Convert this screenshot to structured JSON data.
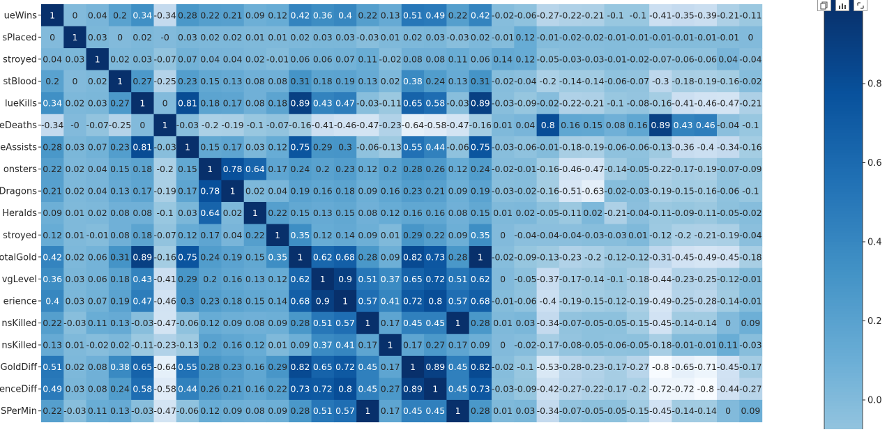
{
  "chart_data": {
    "type": "heatmap",
    "rows": [
      "blueWins",
      "blueWardsPlaced",
      "blueWardsDestroyed",
      "blueFirstBlood",
      "blueKills",
      "blueDeaths",
      "blueAssists",
      "blueEliteMonsters",
      "blueDragons",
      "blueHeralds",
      "blueTowersDestroyed",
      "blueTotalGold",
      "blueAvgLevel",
      "blueTotalExperience",
      "blueTotalMinionsKilled",
      "blueTotalJungleMinionsKilled",
      "blueGoldDiff",
      "blueExperienceDiff",
      "blueCSPerMin"
    ],
    "row_labels_visible": [
      "ueWins",
      "sPlaced",
      "stroyed",
      "stBlood",
      "lueKills",
      "eDeaths",
      "eAssists",
      "onsters",
      "Dragons",
      "Heralds",
      "stroyed",
      "otalGold",
      "vgLevel",
      "erience",
      "nsKilled",
      "nsKilled",
      "GoldDiff",
      "enceDiff",
      "SPerMin"
    ],
    "values": [
      [
        1,
        0,
        0.04,
        0.2,
        0.34,
        -0.34,
        0.28,
        0.22,
        0.21,
        0.09,
        0.12,
        0.42,
        0.36,
        0.4,
        0.22,
        0.13,
        0.51,
        0.49,
        0.22,
        0.42,
        -0.02,
        -0.06,
        -0.27,
        -0.22,
        -0.21,
        -0.1,
        -0.1,
        -0.41,
        -0.35,
        -0.39,
        -0.21,
        -0.11
      ],
      [
        0,
        1,
        0.03,
        0,
        0.02,
        0,
        0.03,
        0.02,
        0.02,
        0.01,
        0.01,
        0.02,
        0.03,
        0.03,
        -0.03,
        0.01,
        0.02,
        0.03,
        -0.03,
        0.02,
        -0.01,
        0.12,
        -0.01,
        -0.02,
        -0.02,
        -0.01,
        -0.01,
        -0.01,
        -0.01,
        -0.01,
        -0.01,
        0
      ],
      [
        0.04,
        0.03,
        1,
        0.02,
        0.03,
        -0.07,
        0.07,
        0.04,
        0.04,
        0.02,
        -0.01,
        0.06,
        0.06,
        0.07,
        0.11,
        -0.02,
        0.08,
        0.08,
        0.11,
        0.06,
        0.14,
        0.12,
        -0.05,
        -0.03,
        -0.03,
        -0.01,
        -0.02,
        -0.07,
        -0.06,
        -0.06,
        0.04,
        -0.04
      ],
      [
        0.2,
        0,
        0.02,
        1,
        0.27,
        -0.25,
        0.23,
        0.15,
        0.13,
        0.08,
        0.08,
        0.31,
        0.18,
        0.19,
        0.13,
        0.02,
        0.38,
        0.24,
        0.13,
        0.31,
        -0.02,
        -0.04,
        -0.2,
        -0.14,
        -0.14,
        -0.06,
        -0.07,
        -0.3,
        -0.18,
        -0.19,
        -0.16,
        -0.02
      ],
      [
        0.34,
        0.02,
        0.03,
        0.27,
        1,
        0,
        0.81,
        0.18,
        0.17,
        0.08,
        0.18,
        0.89,
        0.43,
        0.47,
        -0.03,
        -0.11,
        0.65,
        0.58,
        -0.03,
        0.89,
        -0.03,
        -0.09,
        -0.02,
        -0.22,
        -0.21,
        -0.1,
        -0.08,
        -0.16,
        -0.41,
        -0.46,
        -0.47,
        -0.21
      ],
      [
        -0.34,
        0,
        -0.07,
        -0.25,
        0,
        1,
        -0.03,
        -0.2,
        -0.19,
        -0.1,
        -0.07,
        -0.16,
        -0.41,
        -0.46,
        -0.47,
        -0.23,
        -0.64,
        -0.58,
        -0.47,
        -0.16,
        0.01,
        0.04,
        0.8,
        0.16,
        0.15,
        0.08,
        0.16,
        0.89,
        0.43,
        0.46,
        -0.04,
        -0.1
      ],
      [
        0.28,
        0.03,
        0.07,
        0.23,
        0.81,
        -0.03,
        1,
        0.15,
        0.17,
        0.03,
        0.12,
        0.75,
        0.29,
        0.3,
        -0.06,
        -0.13,
        0.55,
        0.44,
        -0.06,
        0.75,
        -0.03,
        -0.06,
        -0.01,
        -0.18,
        -0.19,
        -0.06,
        -0.06,
        -0.13,
        -0.36,
        -0.4,
        -0.34,
        -0.16
      ],
      [
        0.22,
        0.02,
        0.04,
        0.15,
        0.18,
        -0.2,
        0.15,
        1,
        0.78,
        0.64,
        0.17,
        0.24,
        0.2,
        0.23,
        0.12,
        0.2,
        0.28,
        0.26,
        0.12,
        0.24,
        -0.02,
        -0.01,
        -0.16,
        -0.46,
        -0.47,
        -0.14,
        -0.05,
        -0.22,
        -0.17,
        -0.19,
        -0.07,
        -0.09
      ],
      [
        0.21,
        0.02,
        0.04,
        0.13,
        0.17,
        -0.19,
        0.17,
        0.78,
        1,
        0.02,
        0.04,
        0.19,
        0.16,
        0.18,
        0.09,
        0.16,
        0.23,
        0.21,
        0.09,
        0.19,
        -0.03,
        -0.02,
        -0.16,
        -0.51,
        -0.63,
        -0.02,
        -0.03,
        -0.19,
        -0.15,
        -0.16,
        -0.06,
        -0.1
      ],
      [
        0.09,
        0.01,
        0.02,
        0.08,
        0.08,
        -0.1,
        0.03,
        0.64,
        0.02,
        1,
        0.22,
        0.15,
        0.13,
        0.15,
        0.08,
        0.12,
        0.16,
        0.16,
        0.08,
        0.15,
        0.01,
        0.02,
        -0.05,
        -0.11,
        0.02,
        -0.21,
        -0.04,
        -0.11,
        -0.09,
        -0.11,
        -0.05,
        -0.02
      ],
      [
        0.12,
        0.01,
        -0.01,
        0.08,
        0.18,
        -0.07,
        0.12,
        0.17,
        0.04,
        0.22,
        1,
        0.35,
        0.12,
        0.14,
        0.09,
        0.01,
        0.29,
        0.22,
        0.09,
        0.35,
        0,
        -0.04,
        -0.04,
        -0.04,
        -0.03,
        -0.03,
        0.01,
        -0.12,
        -0.2,
        -0.21,
        -0.19,
        -0.04
      ],
      [
        0.42,
        0.02,
        0.06,
        0.31,
        0.89,
        -0.16,
        0.75,
        0.24,
        0.19,
        0.15,
        0.35,
        1,
        0.62,
        0.68,
        0.28,
        0.09,
        0.82,
        0.73,
        0.28,
        1,
        -0.02,
        -0.09,
        -0.13,
        -0.23,
        -0.2,
        -0.12,
        -0.12,
        -0.31,
        -0.45,
        -0.49,
        -0.45,
        -0.18
      ],
      [
        0.36,
        0.03,
        0.06,
        0.18,
        0.43,
        -0.41,
        0.29,
        0.2,
        0.16,
        0.13,
        0.12,
        0.62,
        1,
        0.9,
        0.51,
        0.37,
        0.65,
        0.72,
        0.51,
        0.62,
        0,
        -0.05,
        -0.37,
        -0.17,
        -0.14,
        -0.1,
        -0.18,
        -0.44,
        -0.23,
        -0.25,
        -0.12,
        -0.01
      ],
      [
        0.4,
        0.03,
        0.07,
        0.19,
        0.47,
        -0.46,
        0.3,
        0.23,
        0.18,
        0.15,
        0.14,
        0.68,
        0.9,
        1,
        0.57,
        0.41,
        0.72,
        0.8,
        0.57,
        0.68,
        -0.01,
        -0.06,
        -0.4,
        -0.19,
        -0.15,
        -0.12,
        -0.19,
        -0.49,
        -0.25,
        -0.28,
        -0.14,
        -0.01
      ],
      [
        0.22,
        -0.03,
        0.11,
        0.13,
        -0.03,
        -0.47,
        -0.06,
        0.12,
        0.09,
        0.08,
        0.09,
        0.28,
        0.51,
        0.57,
        1,
        0.17,
        0.45,
        0.45,
        1,
        0.28,
        0.01,
        0.03,
        -0.34,
        -0.07,
        -0.05,
        -0.05,
        -0.15,
        -0.45,
        -0.14,
        -0.14,
        0,
        0.09
      ],
      [
        0.13,
        0.01,
        -0.02,
        0.02,
        -0.11,
        -0.23,
        -0.13,
        0.2,
        0.16,
        0.12,
        0.01,
        0.09,
        0.37,
        0.41,
        0.17,
        1,
        0.17,
        0.27,
        0.17,
        0.09,
        0,
        -0.02,
        -0.17,
        -0.08,
        -0.05,
        -0.06,
        -0.05,
        -0.18,
        -0.01,
        -0.01,
        0.11,
        -0.03
      ],
      [
        0.51,
        0.02,
        0.08,
        0.38,
        0.65,
        -0.64,
        0.55,
        0.28,
        0.23,
        0.16,
        0.29,
        0.82,
        0.65,
        0.72,
        0.45,
        0.17,
        1,
        0.89,
        0.45,
        0.82,
        -0.02,
        -0.1,
        -0.53,
        -0.28,
        -0.23,
        -0.17,
        -0.27,
        -0.8,
        -0.65,
        -0.71,
        -0.45,
        -0.17
      ],
      [
        0.49,
        0.03,
        0.08,
        0.24,
        0.58,
        -0.58,
        0.44,
        0.26,
        0.21,
        0.16,
        0.22,
        0.73,
        0.72,
        0.8,
        0.45,
        0.27,
        0.89,
        1,
        0.45,
        0.73,
        -0.03,
        -0.09,
        -0.42,
        -0.27,
        -0.22,
        -0.17,
        -0.2,
        -0.72,
        -0.72,
        -0.8,
        -0.44,
        -0.27
      ],
      [
        0.22,
        -0.03,
        0.11,
        0.13,
        -0.03,
        -0.47,
        -0.06,
        0.12,
        0.09,
        0.08,
        0.09,
        0.28,
        0.51,
        0.57,
        1,
        0.17,
        0.45,
        0.45,
        1,
        0.28,
        0.01,
        0.03,
        -0.34,
        -0.07,
        -0.05,
        -0.05,
        -0.15,
        -0.45,
        -0.14,
        -0.14,
        0,
        0.09
      ]
    ],
    "colormap": "Blues",
    "vmin": -0.8,
    "vmax": 1,
    "colorbar_ticks": [
      0.8,
      0.6,
      0.4,
      0.2,
      0.0
    ],
    "colorbar_tick_labels": [
      "0.8",
      "0.6",
      "0.4",
      "0.2",
      "0.0"
    ],
    "annotated": true
  },
  "toolbar": {
    "icons": [
      "copy-icon",
      "chart-icon",
      "expand-icon"
    ]
  }
}
